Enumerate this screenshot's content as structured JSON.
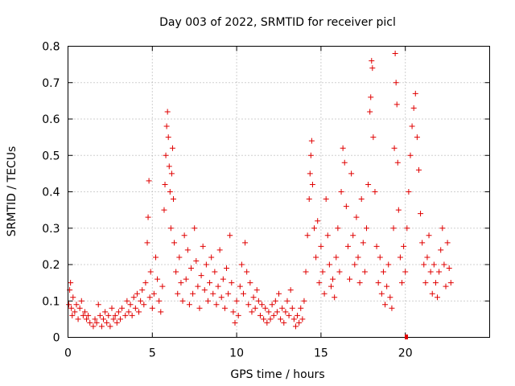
{
  "chart_data": {
    "type": "scatter",
    "title": "Day 003 of 2022, SRMTID for receiver picl",
    "xlabel": "GPS time / hours",
    "ylabel": "SRMTID / TECUs",
    "xlim": [
      0,
      25
    ],
    "ylim": [
      0,
      0.8
    ],
    "x_ticks": [
      "0",
      "5",
      "10",
      "15",
      "20"
    ],
    "y_ticks": [
      "0",
      "0.1",
      "0.2",
      "0.3",
      "0.4",
      "0.5",
      "0.6",
      "0.7",
      "0.8"
    ],
    "grid": true,
    "marker": "plus",
    "color": "#e00000",
    "series": [
      {
        "name": "SRMTID",
        "points": [
          [
            0.05,
            0.09
          ],
          [
            0.1,
            0.13
          ],
          [
            0.15,
            0.15
          ],
          [
            0.2,
            0.08
          ],
          [
            0.25,
            0.06
          ],
          [
            0.3,
            0.11
          ],
          [
            0.4,
            0.07
          ],
          [
            0.5,
            0.09
          ],
          [
            0.6,
            0.05
          ],
          [
            0.7,
            0.08
          ],
          [
            0.8,
            0.1
          ],
          [
            0.9,
            0.06
          ],
          [
            1.0,
            0.07
          ],
          [
            1.1,
            0.05
          ],
          [
            1.2,
            0.06
          ],
          [
            1.3,
            0.04
          ],
          [
            1.5,
            0.03
          ],
          [
            1.6,
            0.05
          ],
          [
            1.7,
            0.04
          ],
          [
            1.8,
            0.09
          ],
          [
            1.9,
            0.06
          ],
          [
            2.0,
            0.03
          ],
          [
            2.1,
            0.05
          ],
          [
            2.2,
            0.07
          ],
          [
            2.3,
            0.04
          ],
          [
            2.4,
            0.06
          ],
          [
            2.5,
            0.03
          ],
          [
            2.6,
            0.08
          ],
          [
            2.7,
            0.05
          ],
          [
            2.8,
            0.06
          ],
          [
            2.9,
            0.04
          ],
          [
            3.0,
            0.07
          ],
          [
            3.1,
            0.05
          ],
          [
            3.2,
            0.08
          ],
          [
            3.4,
            0.06
          ],
          [
            3.5,
            0.1
          ],
          [
            3.6,
            0.07
          ],
          [
            3.7,
            0.09
          ],
          [
            3.8,
            0.06
          ],
          [
            3.9,
            0.11
          ],
          [
            4.0,
            0.08
          ],
          [
            4.1,
            0.12
          ],
          [
            4.2,
            0.07
          ],
          [
            4.3,
            0.1
          ],
          [
            4.4,
            0.13
          ],
          [
            4.5,
            0.09
          ],
          [
            4.6,
            0.15
          ],
          [
            4.7,
            0.26
          ],
          [
            4.75,
            0.33
          ],
          [
            4.8,
            0.43
          ],
          [
            4.85,
            0.11
          ],
          [
            4.9,
            0.18
          ],
          [
            5.0,
            0.08
          ],
          [
            5.1,
            0.12
          ],
          [
            5.2,
            0.22
          ],
          [
            5.3,
            0.16
          ],
          [
            5.4,
            0.1
          ],
          [
            5.5,
            0.07
          ],
          [
            5.6,
            0.14
          ],
          [
            5.7,
            0.35
          ],
          [
            5.75,
            0.42
          ],
          [
            5.8,
            0.5
          ],
          [
            5.85,
            0.58
          ],
          [
            5.9,
            0.62
          ],
          [
            5.95,
            0.55
          ],
          [
            6.0,
            0.47
          ],
          [
            6.05,
            0.4
          ],
          [
            6.1,
            0.3
          ],
          [
            6.15,
            0.45
          ],
          [
            6.2,
            0.52
          ],
          [
            6.25,
            0.38
          ],
          [
            6.3,
            0.26
          ],
          [
            6.4,
            0.18
          ],
          [
            6.5,
            0.12
          ],
          [
            6.6,
            0.22
          ],
          [
            6.7,
            0.15
          ],
          [
            6.8,
            0.1
          ],
          [
            6.9,
            0.28
          ],
          [
            7.0,
            0.16
          ],
          [
            7.1,
            0.24
          ],
          [
            7.2,
            0.09
          ],
          [
            7.3,
            0.19
          ],
          [
            7.4,
            0.12
          ],
          [
            7.5,
            0.3
          ],
          [
            7.6,
            0.21
          ],
          [
            7.7,
            0.14
          ],
          [
            7.8,
            0.08
          ],
          [
            7.9,
            0.17
          ],
          [
            8.0,
            0.25
          ],
          [
            8.1,
            0.13
          ],
          [
            8.2,
            0.2
          ],
          [
            8.3,
            0.1
          ],
          [
            8.4,
            0.15
          ],
          [
            8.5,
            0.22
          ],
          [
            8.6,
            0.12
          ],
          [
            8.7,
            0.18
          ],
          [
            8.8,
            0.09
          ],
          [
            8.9,
            0.14
          ],
          [
            9.0,
            0.24
          ],
          [
            9.1,
            0.11
          ],
          [
            9.2,
            0.16
          ],
          [
            9.3,
            0.08
          ],
          [
            9.4,
            0.19
          ],
          [
            9.5,
            0.12
          ],
          [
            9.6,
            0.28
          ],
          [
            9.7,
            0.15
          ],
          [
            9.8,
            0.07
          ],
          [
            9.9,
            0.04
          ],
          [
            10.0,
            0.1
          ],
          [
            10.1,
            0.06
          ],
          [
            10.2,
            0.14
          ],
          [
            10.3,
            0.2
          ],
          [
            10.4,
            0.12
          ],
          [
            10.5,
            0.26
          ],
          [
            10.6,
            0.18
          ],
          [
            10.7,
            0.09
          ],
          [
            10.8,
            0.15
          ],
          [
            10.9,
            0.07
          ],
          [
            11.0,
            0.11
          ],
          [
            11.1,
            0.08
          ],
          [
            11.2,
            0.13
          ],
          [
            11.3,
            0.1
          ],
          [
            11.4,
            0.06
          ],
          [
            11.5,
            0.09
          ],
          [
            11.6,
            0.05
          ],
          [
            11.7,
            0.08
          ],
          [
            11.8,
            0.04
          ],
          [
            11.9,
            0.07
          ],
          [
            12.0,
            0.05
          ],
          [
            12.1,
            0.09
          ],
          [
            12.2,
            0.06
          ],
          [
            12.3,
            0.1
          ],
          [
            12.4,
            0.07
          ],
          [
            12.5,
            0.12
          ],
          [
            12.6,
            0.05
          ],
          [
            12.7,
            0.08
          ],
          [
            12.8,
            0.04
          ],
          [
            12.9,
            0.07
          ],
          [
            13.0,
            0.1
          ],
          [
            13.1,
            0.06
          ],
          [
            13.2,
            0.13
          ],
          [
            13.3,
            0.08
          ],
          [
            13.4,
            0.05
          ],
          [
            13.5,
            0.03
          ],
          [
            13.6,
            0.06
          ],
          [
            13.7,
            0.04
          ],
          [
            13.8,
            0.08
          ],
          [
            13.9,
            0.05
          ],
          [
            14.0,
            0.1
          ],
          [
            14.1,
            0.18
          ],
          [
            14.2,
            0.28
          ],
          [
            14.3,
            0.38
          ],
          [
            14.35,
            0.45
          ],
          [
            14.4,
            0.5
          ],
          [
            14.45,
            0.54
          ],
          [
            14.5,
            0.42
          ],
          [
            14.6,
            0.3
          ],
          [
            14.7,
            0.22
          ],
          [
            14.8,
            0.32
          ],
          [
            14.9,
            0.15
          ],
          [
            15.0,
            0.25
          ],
          [
            15.1,
            0.18
          ],
          [
            15.2,
            0.12
          ],
          [
            15.3,
            0.38
          ],
          [
            15.4,
            0.28
          ],
          [
            15.5,
            0.2
          ],
          [
            15.6,
            0.14
          ],
          [
            15.7,
            0.16
          ],
          [
            15.8,
            0.11
          ],
          [
            15.9,
            0.22
          ],
          [
            16.0,
            0.3
          ],
          [
            16.1,
            0.18
          ],
          [
            16.2,
            0.4
          ],
          [
            16.3,
            0.52
          ],
          [
            16.4,
            0.48
          ],
          [
            16.5,
            0.36
          ],
          [
            16.6,
            0.25
          ],
          [
            16.7,
            0.16
          ],
          [
            16.8,
            0.45
          ],
          [
            16.9,
            0.28
          ],
          [
            17.0,
            0.2
          ],
          [
            17.1,
            0.33
          ],
          [
            17.2,
            0.22
          ],
          [
            17.3,
            0.15
          ],
          [
            17.4,
            0.38
          ],
          [
            17.5,
            0.26
          ],
          [
            17.6,
            0.18
          ],
          [
            17.7,
            0.3
          ],
          [
            17.8,
            0.42
          ],
          [
            17.9,
            0.62
          ],
          [
            17.95,
            0.66
          ],
          [
            18.0,
            0.76
          ],
          [
            18.05,
            0.74
          ],
          [
            18.1,
            0.55
          ],
          [
            18.2,
            0.4
          ],
          [
            18.3,
            0.25
          ],
          [
            18.4,
            0.15
          ],
          [
            18.5,
            0.22
          ],
          [
            18.6,
            0.12
          ],
          [
            18.7,
            0.18
          ],
          [
            18.8,
            0.09
          ],
          [
            18.9,
            0.14
          ],
          [
            19.0,
            0.2
          ],
          [
            19.1,
            0.11
          ],
          [
            19.2,
            0.08
          ],
          [
            19.3,
            0.3
          ],
          [
            19.35,
            0.52
          ],
          [
            19.4,
            0.78
          ],
          [
            19.45,
            0.7
          ],
          [
            19.5,
            0.64
          ],
          [
            19.55,
            0.48
          ],
          [
            19.6,
            0.35
          ],
          [
            19.7,
            0.22
          ],
          [
            19.8,
            0.15
          ],
          [
            19.9,
            0.25
          ],
          [
            20.0,
            0.18
          ],
          [
            20.1,
            0.3
          ],
          [
            20.2,
            0.4
          ],
          [
            20.3,
            0.5
          ],
          [
            20.4,
            0.58
          ],
          [
            20.5,
            0.63
          ],
          [
            20.6,
            0.67
          ],
          [
            20.7,
            0.55
          ],
          [
            20.8,
            0.46
          ],
          [
            20.9,
            0.34
          ],
          [
            21.0,
            0.26
          ],
          [
            21.1,
            0.2
          ],
          [
            21.2,
            0.15
          ],
          [
            21.3,
            0.22
          ],
          [
            21.4,
            0.28
          ],
          [
            21.5,
            0.18
          ],
          [
            21.6,
            0.12
          ],
          [
            21.7,
            0.2
          ],
          [
            21.8,
            0.15
          ],
          [
            21.9,
            0.11
          ],
          [
            22.0,
            0.18
          ],
          [
            22.1,
            0.24
          ],
          [
            22.2,
            0.3
          ],
          [
            22.3,
            0.2
          ],
          [
            22.4,
            0.14
          ],
          [
            22.5,
            0.26
          ],
          [
            22.6,
            0.19
          ],
          [
            22.7,
            0.15
          ]
        ]
      }
    ]
  }
}
